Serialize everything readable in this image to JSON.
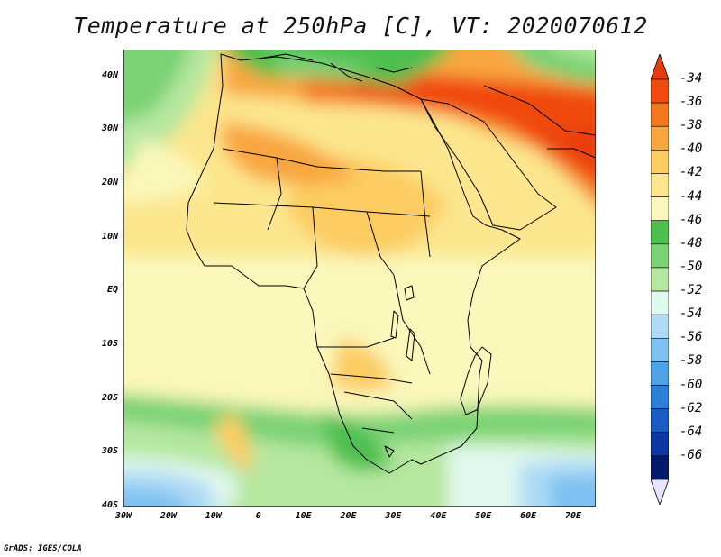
{
  "title": "Temperature at 250hPa [C], VT: 2020070612",
  "credit": "GrADS: IGES/COLA",
  "map": {
    "lat_labels": [
      "40N",
      "30N",
      "20N",
      "10N",
      "EQ",
      "10S",
      "20S",
      "30S",
      "40S"
    ],
    "lon_labels": [
      "30W",
      "20W",
      "10W",
      "0",
      "10E",
      "20E",
      "30E",
      "40E",
      "50E",
      "60E",
      "70E"
    ],
    "extent": {
      "lon_min": -30,
      "lon_max": 75,
      "lat_min": -40,
      "lat_max": 45
    }
  },
  "colorbar": {
    "labels": [
      "-34",
      "-36",
      "-38",
      "-40",
      "-42",
      "-44",
      "-46",
      "-48",
      "-50",
      "-52",
      "-54",
      "-56",
      "-58",
      "-60",
      "-62",
      "-64",
      "-66"
    ],
    "colors": [
      "#f04a0e",
      "#f5781e",
      "#f9a640",
      "#fccc62",
      "#fbe68d",
      "#f9f7ba",
      "#4dbf4f",
      "#7ad274",
      "#b5e79f",
      "#e1f8ee",
      "#aedaf5",
      "#7dc1f1",
      "#4ea3e6",
      "#2b80d9",
      "#1a5cc3",
      "#0d37a1",
      "#061a6b"
    ],
    "over_color": "#e83c0c",
    "under_color": "#e8e4ff"
  }
}
